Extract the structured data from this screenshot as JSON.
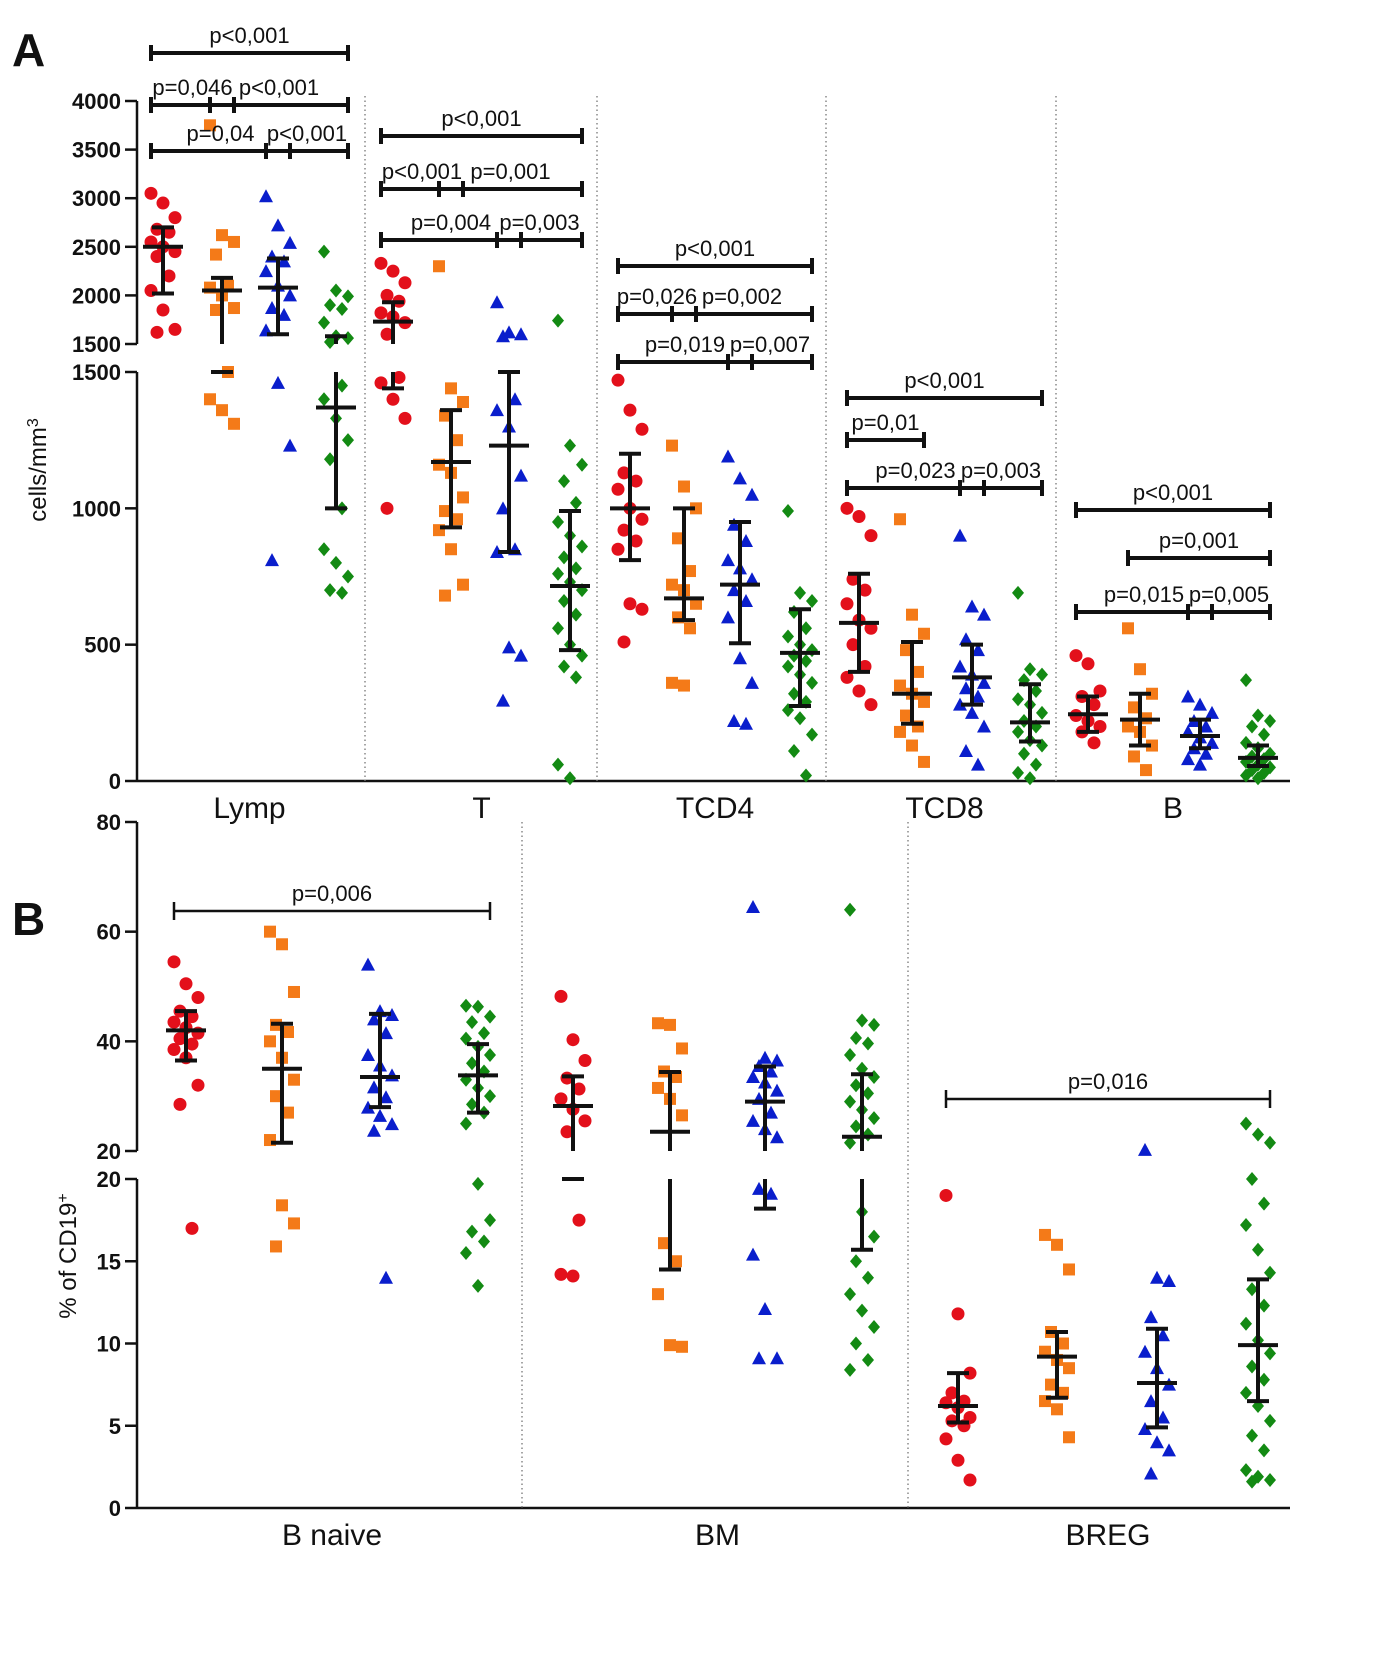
{
  "colors": {
    "g1": "#e3101b",
    "g2": "#f47a18",
    "g3": "#0a1ecc",
    "g4": "#138a13"
  },
  "panels": {
    "A": "A",
    "B": "B"
  },
  "chart_data": [
    {
      "type": "scatter",
      "panel": "A",
      "ylabel": "cells/mm3",
      "ylabel_main": "cells/mm",
      "ylabel_sup": "3",
      "axis_break": {
        "lower_max": 1500,
        "upper_min": 1500,
        "upper_max": 4000
      },
      "yticks_lower": [
        "0",
        "500",
        "1000",
        "1500"
      ],
      "yticks_upper": [
        "1500",
        "2000",
        "2500",
        "3000",
        "3500",
        "4000"
      ],
      "categories": [
        "Lymp",
        "T",
        "TCD4",
        "TCD8",
        "B"
      ],
      "groups": [
        {
          "marker": "circle",
          "color": "g1"
        },
        {
          "marker": "square",
          "color": "g2"
        },
        {
          "marker": "triangle",
          "color": "g3"
        },
        {
          "marker": "diamond",
          "color": "g4"
        }
      ],
      "summary": [
        [
          {
            "median": 2500,
            "q1": 2020,
            "q3": 2700
          },
          {
            "median": 2050,
            "q1": 1500,
            "q3": 2180
          },
          {
            "median": 2080,
            "q1": 1600,
            "q3": 2380
          },
          {
            "median": 1370,
            "q1": 1000,
            "q3": 1580
          }
        ],
        [
          {
            "median": 1730,
            "q1": 1440,
            "q3": 1930
          },
          {
            "median": 1170,
            "q1": 930,
            "q3": 1360
          },
          {
            "median": 1230,
            "q1": 840,
            "q3": 1500
          },
          {
            "median": 715,
            "q1": 480,
            "q3": 990
          }
        ],
        [
          {
            "median": 1000,
            "q1": 810,
            "q3": 1200
          },
          {
            "median": 670,
            "q1": 590,
            "q3": 1000
          },
          {
            "median": 720,
            "q1": 505,
            "q3": 950
          },
          {
            "median": 470,
            "q1": 275,
            "q3": 630
          }
        ],
        [
          {
            "median": 580,
            "q1": 400,
            "q3": 760
          },
          {
            "median": 320,
            "q1": 210,
            "q3": 510
          },
          {
            "median": 380,
            "q1": 280,
            "q3": 500
          },
          {
            "median": 215,
            "q1": 145,
            "q3": 355
          }
        ],
        [
          {
            "median": 245,
            "q1": 180,
            "q3": 310
          },
          {
            "median": 225,
            "q1": 130,
            "q3": 320
          },
          {
            "median": 165,
            "q1": 120,
            "q3": 225
          },
          {
            "median": 85,
            "q1": 55,
            "q3": 130
          }
        ]
      ],
      "points": [
        [
          [
            3050,
            2950,
            2800,
            2680,
            2650,
            2550,
            2500,
            2450,
            2400,
            2200,
            2050,
            1850,
            1650,
            1620
          ],
          [
            3750,
            2620,
            2550,
            2420,
            2100,
            2080,
            2000,
            1870,
            1850,
            1500,
            1400,
            1360,
            1310
          ],
          [
            3020,
            2720,
            2540,
            2400,
            2350,
            2250,
            2100,
            2000,
            1870,
            1800,
            1640,
            1460,
            1230,
            810
          ],
          [
            2450,
            2050,
            1990,
            1900,
            1860,
            1720,
            1580,
            1560,
            1520,
            1450,
            1400,
            1330,
            1250,
            1180,
            1000,
            850,
            800,
            750,
            700,
            690
          ]
        ],
        [
          [
            2330,
            2250,
            2130,
            2000,
            1940,
            1820,
            1780,
            1720,
            1600,
            1480,
            1460,
            1400,
            1330,
            1000
          ],
          [
            2300,
            1440,
            1390,
            1340,
            1250,
            1160,
            1130,
            1040,
            990,
            960,
            920,
            850,
            720,
            680
          ],
          [
            1930,
            1620,
            1600,
            1580,
            1400,
            1360,
            1300,
            1120,
            1000,
            850,
            840,
            490,
            460,
            295
          ],
          [
            1740,
            1230,
            1160,
            1100,
            1020,
            950,
            900,
            860,
            820,
            780,
            760,
            730,
            700,
            660,
            610,
            560,
            500,
            460,
            420,
            380,
            60,
            10
          ]
        ],
        [
          [
            1470,
            1360,
            1290,
            1130,
            1100,
            1070,
            1000,
            960,
            920,
            880,
            850,
            650,
            630,
            510
          ],
          [
            1230,
            1080,
            1000,
            890,
            770,
            720,
            700,
            650,
            600,
            560,
            360,
            350
          ],
          [
            1190,
            1110,
            1050,
            940,
            880,
            810,
            780,
            740,
            700,
            660,
            600,
            450,
            360,
            220,
            210
          ],
          [
            990,
            690,
            660,
            620,
            560,
            530,
            500,
            480,
            460,
            440,
            420,
            390,
            360,
            320,
            290,
            260,
            230,
            170,
            110,
            20
          ]
        ],
        [
          [
            1000,
            970,
            900,
            740,
            700,
            650,
            590,
            560,
            500,
            420,
            380,
            330,
            280
          ],
          [
            960,
            610,
            540,
            480,
            400,
            350,
            320,
            290,
            240,
            200,
            180,
            130,
            70
          ],
          [
            900,
            640,
            610,
            520,
            480,
            420,
            390,
            360,
            340,
            310,
            280,
            250,
            200,
            110,
            60
          ],
          [
            690,
            410,
            390,
            370,
            330,
            300,
            280,
            250,
            220,
            200,
            180,
            150,
            130,
            100,
            60,
            30,
            10
          ]
        ],
        [
          [
            460,
            430,
            330,
            310,
            280,
            240,
            220,
            200,
            180,
            140
          ],
          [
            560,
            410,
            320,
            270,
            230,
            200,
            180,
            130,
            90,
            40
          ],
          [
            310,
            280,
            250,
            220,
            200,
            180,
            160,
            140,
            120,
            100,
            80,
            60
          ],
          [
            370,
            240,
            220,
            200,
            170,
            140,
            120,
            100,
            90,
            80,
            70,
            60,
            50,
            40,
            30,
            20,
            10
          ]
        ]
      ],
      "comparisons": [
        [
          {
            "from": 0,
            "to": 3,
            "p": "p<0,001"
          },
          {
            "from": 0,
            "to": 1,
            "p": "p=0,046"
          },
          {
            "from": 1,
            "to": 3,
            "p": "p<0,001"
          },
          {
            "from": 0,
            "to": 2,
            "p": "p=0,04"
          },
          {
            "from": 2,
            "to": 3,
            "p": "p<0,001"
          }
        ],
        [
          {
            "from": 0,
            "to": 3,
            "p": "p<0,001"
          },
          {
            "from": 0,
            "to": 1,
            "p": "p<0,001"
          },
          {
            "from": 1,
            "to": 3,
            "p": "p=0,001"
          },
          {
            "from": 0,
            "to": 2,
            "p": "p=0,004"
          },
          {
            "from": 2,
            "to": 3,
            "p": "p=0,003"
          }
        ],
        [
          {
            "from": 0,
            "to": 3,
            "p": "p<0,001"
          },
          {
            "from": 0,
            "to": 1,
            "p": "p=0,026"
          },
          {
            "from": 1,
            "to": 3,
            "p": "p=0,002"
          },
          {
            "from": 0,
            "to": 2,
            "p": "p=0,019"
          },
          {
            "from": 2,
            "to": 3,
            "p": "p=0,007"
          }
        ],
        [
          {
            "from": 0,
            "to": 3,
            "p": "p<0,001"
          },
          {
            "from": 0,
            "to": 1,
            "p": "p=0,01"
          },
          {
            "from": 0,
            "to": 2,
            "p": "p=0,023"
          },
          {
            "from": 2,
            "to": 3,
            "p": "p=0,003"
          }
        ],
        [
          {
            "from": 0,
            "to": 3,
            "p": "p<0,001"
          },
          {
            "from": 1,
            "to": 3,
            "p": "p=0,001"
          },
          {
            "from": 0,
            "to": 2,
            "p": "p=0,015"
          },
          {
            "from": 2,
            "to": 3,
            "p": "p=0,005"
          }
        ]
      ]
    },
    {
      "type": "scatter",
      "panel": "B",
      "ylabel": "% of CD19+",
      "ylabel_main": "% of CD19",
      "ylabel_sup": "+",
      "axis_break": {
        "lower_max": 20,
        "upper_min": 20,
        "upper_max": 80
      },
      "yticks_lower": [
        "0",
        "5",
        "10",
        "15",
        "20"
      ],
      "yticks_upper": [
        "20",
        "40",
        "60",
        "80"
      ],
      "categories": [
        "B naive",
        "BM",
        "BREG"
      ],
      "groups": [
        {
          "marker": "circle",
          "color": "g1"
        },
        {
          "marker": "square",
          "color": "g2"
        },
        {
          "marker": "triangle",
          "color": "g3"
        },
        {
          "marker": "diamond",
          "color": "g4"
        }
      ],
      "summary": [
        [
          {
            "median": 42,
            "q1": 36.5,
            "q3": 45.5
          },
          {
            "median": 35,
            "q1": 21.5,
            "q3": 43.2
          },
          {
            "median": 33.5,
            "q1": 28,
            "q3": 45
          },
          {
            "median": 33.8,
            "q1": 27,
            "q3": 39.5
          }
        ],
        [
          {
            "median": 28.2,
            "q1": 20,
            "q3": 33.6
          },
          {
            "median": 23.5,
            "q1": 14.5,
            "q3": 34.4
          },
          {
            "median": 29,
            "q1": 18.2,
            "q3": 35.4
          },
          {
            "median": 22.6,
            "q1": 15.7,
            "q3": 34
          }
        ],
        [
          {
            "median": 6.2,
            "q1": 5.2,
            "q3": 8.2
          },
          {
            "median": 9.2,
            "q1": 6.7,
            "q3": 10.7
          },
          {
            "median": 7.6,
            "q1": 4.9,
            "q3": 10.9
          },
          {
            "median": 9.9,
            "q1": 6.5,
            "q3": 13.9
          }
        ]
      ],
      "points": [
        [
          [
            54.5,
            50.5,
            48,
            45.5,
            44.5,
            43.5,
            42.5,
            41.5,
            40.5,
            39.5,
            38.5,
            37,
            32,
            28.5,
            17
          ],
          [
            60,
            57.7,
            49,
            43,
            41.7,
            40,
            37,
            33,
            30,
            27,
            22,
            18.4,
            17.3,
            15.9
          ],
          [
            54,
            45.5,
            44.8,
            44,
            41.5,
            37.5,
            35.6,
            33.8,
            31.6,
            29.8,
            27.9,
            26.4,
            24.9,
            23.7,
            14
          ],
          [
            46.5,
            46.3,
            44.5,
            43.5,
            41.5,
            40.5,
            39,
            37.5,
            36,
            34.5,
            33,
            31.5,
            30,
            28.5,
            27,
            25,
            19.7,
            17.5,
            16.8,
            16.2,
            15.5,
            13.5
          ]
        ],
        [
          [
            48.2,
            40.3,
            36.5,
            33.3,
            31.3,
            29.5,
            27.6,
            25.5,
            23.5,
            17.5,
            14.2,
            14.1
          ],
          [
            43.3,
            43,
            38.7,
            34.5,
            33.5,
            31.5,
            29.5,
            26.5,
            16.1,
            15,
            13,
            9.9,
            9.8
          ],
          [
            64.5,
            37,
            36.5,
            35.5,
            34.5,
            33.5,
            32.5,
            31,
            29.5,
            27,
            25.5,
            24,
            22.5,
            19.4,
            19.1,
            15.4,
            12.1,
            9.1,
            9.1
          ],
          [
            64,
            43.8,
            43,
            40.6,
            39.6,
            37.5,
            35,
            33.5,
            32,
            30.5,
            29,
            27.5,
            26,
            24.5,
            23,
            21.5,
            18,
            16.5,
            15,
            14,
            13,
            12,
            11,
            10,
            9,
            8.4
          ]
        ],
        [
          [
            19,
            11.8,
            8.2,
            7,
            6.5,
            6.4,
            6.1,
            5.5,
            5.3,
            5,
            4.2,
            2.9,
            1.7
          ],
          [
            16.6,
            16,
            14.5,
            10.7,
            10,
            9.5,
            9,
            8.5,
            7.5,
            7,
            6.5,
            6,
            4.3
          ],
          [
            20.2,
            14,
            13.8,
            11.6,
            10.5,
            9.5,
            8.5,
            7.5,
            6.5,
            5.5,
            4.8,
            4,
            3.5,
            2.1
          ],
          [
            25,
            23,
            21.5,
            20,
            18.5,
            17.2,
            15.7,
            14.3,
            13.3,
            12.3,
            11.2,
            10.2,
            9.4,
            8.6,
            7.8,
            7,
            6.2,
            5.3,
            4.4,
            3.5,
            2.3,
            1.9,
            1.7,
            1.6
          ]
        ]
      ],
      "comparisons": [
        [
          {
            "from": 0,
            "to": 3,
            "p": "p=0,006"
          }
        ],
        [],
        [
          {
            "from": 0,
            "to": 3,
            "p": "p=0,016"
          }
        ]
      ]
    }
  ]
}
